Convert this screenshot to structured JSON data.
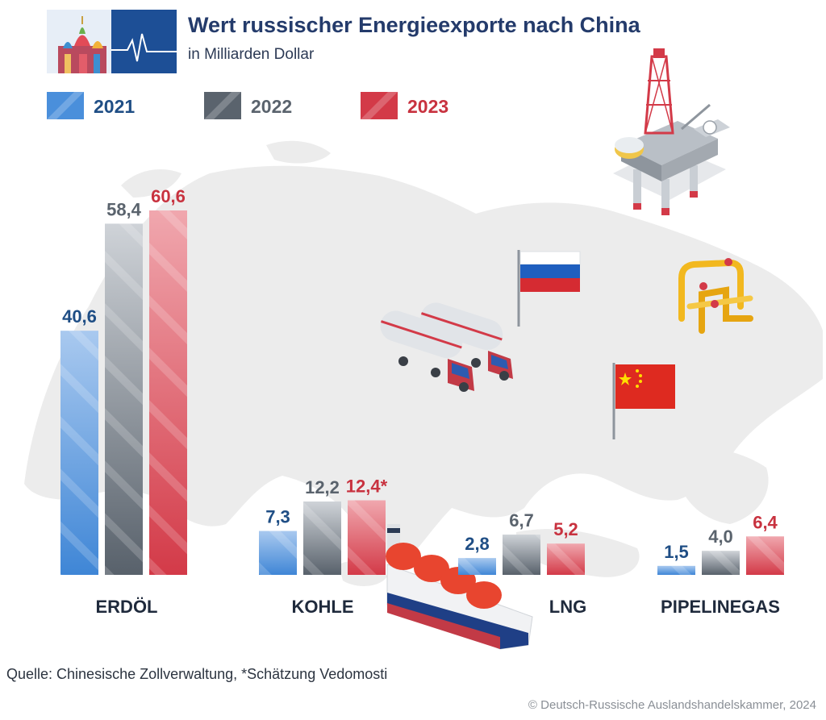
{
  "header": {
    "title": "Wert russischer Energieexporte nach China",
    "subtitle": "in Milliarden Dollar"
  },
  "colors": {
    "2021": "#4a8fdb",
    "2022": "#5a636d",
    "2023": "#d33a48",
    "title": "#243b6b",
    "map": "#ececec"
  },
  "chart_data": {
    "type": "bar",
    "categories": [
      "ERDÖL",
      "KOHLE",
      "LNG",
      "PIPELINEGAS"
    ],
    "series": [
      {
        "name": "2021",
        "values": [
          40.6,
          7.3,
          2.8,
          1.5
        ],
        "labels": [
          "40,6",
          "7,3",
          "2,8",
          "1,5"
        ]
      },
      {
        "name": "2022",
        "values": [
          58.4,
          12.2,
          6.7,
          4.0
        ],
        "labels": [
          "58,4",
          "12,2",
          "6,7",
          "4,0"
        ]
      },
      {
        "name": "2023",
        "values": [
          60.6,
          12.4,
          5.2,
          6.4
        ],
        "labels": [
          "60,6",
          "12,4*",
          "5,2",
          "6,4"
        ]
      }
    ],
    "value_label_colors": [
      "#1f4e85",
      "#5a636d",
      "#c8323f"
    ],
    "ylim": [
      0,
      60.6
    ],
    "grid": false,
    "legend_position": "top-left"
  },
  "footer": {
    "source": "Quelle: Chinesische Zollverwaltung, *Schätzung Vedomosti",
    "copyright": "© Deutsch-Russische Auslandshandelskammer, 2024"
  }
}
